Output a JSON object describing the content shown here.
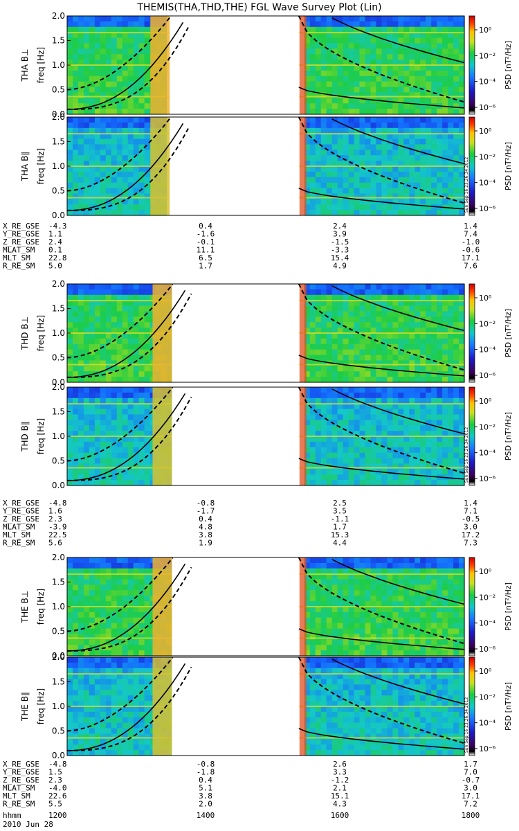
{
  "chart_data": {
    "type": "heatmap",
    "title": "THEMIS(THA,THD,THE) FGL Wave Survey Plot (Lin)",
    "freq_range_hz": [
      0,
      2.0
    ],
    "y_ticks": [
      "0.0",
      "0.5",
      "1.0",
      "1.5",
      "2.0"
    ],
    "colorbar": {
      "label": "PSD [nT²/Hz]",
      "ticks": [
        "10⁰",
        "10⁻²",
        "10⁻⁴",
        "10⁻⁶"
      ],
      "scale": "log"
    },
    "stamp": "Sun Sep 16 23:26:34 2012",
    "x_axis": {
      "label": "hhmm",
      "date": "2010 Jun 28",
      "ticks": [
        "1200",
        "1400",
        "1600",
        "1800"
      ],
      "range_hhmm": [
        "1200",
        "1800"
      ]
    },
    "panels": [
      {
        "probe": "THA",
        "label": "THA B⊥",
        "ylabel": "freq [Hz]"
      },
      {
        "probe": "THA",
        "label": "THA B∥",
        "ylabel": "freq [Hz]"
      },
      {
        "probe": "THD",
        "label": "THD B⊥",
        "ylabel": "freq [Hz]"
      },
      {
        "probe": "THD",
        "label": "THD B∥",
        "ylabel": "freq [Hz]"
      },
      {
        "probe": "THE",
        "label": "THE B⊥",
        "ylabel": "freq [Hz]"
      },
      {
        "probe": "THE",
        "label": "THE B∥",
        "ylabel": "freq [Hz]"
      }
    ],
    "data_gaps_hhmm": [
      {
        "probe": "THA",
        "from": "1333",
        "to": "1530"
      },
      {
        "probe": "THD",
        "from": "1335",
        "to": "1530"
      },
      {
        "probe": "THE",
        "from": "1335",
        "to": "1530"
      }
    ],
    "ephemeris": [
      {
        "probe": "THA",
        "rows": [
          {
            "name": "X_RE_GSE",
            "values": [
              "-4.3",
              "0.4",
              "2.4",
              "1.4"
            ]
          },
          {
            "name": "Y_RE_GSE",
            "values": [
              "1.1",
              "-1.6",
              "3.9",
              "7.4"
            ]
          },
          {
            "name": "Z_RE_GSE",
            "values": [
              "2.4",
              "-0.1",
              "-1.5",
              "-1.0"
            ]
          },
          {
            "name": "MLAT_SM",
            "values": [
              "0.1",
              "11.1",
              "-3.3",
              "-0.6"
            ]
          },
          {
            "name": "MLT_SM",
            "values": [
              "22.8",
              "6.5",
              "15.4",
              "17.1"
            ]
          },
          {
            "name": "R_RE_SM",
            "values": [
              "5.0",
              "1.7",
              "4.9",
              "7.6"
            ]
          }
        ]
      },
      {
        "probe": "THD",
        "rows": [
          {
            "name": "X_RE_GSE",
            "values": [
              "-4.8",
              "-0.8",
              "2.5",
              "1.4"
            ]
          },
          {
            "name": "Y_RE_GSE",
            "values": [
              "1.6",
              "-1.7",
              "3.5",
              "7.1"
            ]
          },
          {
            "name": "Z_RE_GSE",
            "values": [
              "2.3",
              "0.4",
              "-1.1",
              "-0.5"
            ]
          },
          {
            "name": "MLAT_SM",
            "values": [
              "-3.9",
              "4.8",
              "1.7",
              "3.0"
            ]
          },
          {
            "name": "MLT_SM",
            "values": [
              "22.5",
              "3.8",
              "15.3",
              "17.2"
            ]
          },
          {
            "name": "R_RE_SM",
            "values": [
              "5.6",
              "1.9",
              "4.4",
              "7.3"
            ]
          }
        ]
      },
      {
        "probe": "THE",
        "rows": [
          {
            "name": "X_RE_GSE",
            "values": [
              "-4.8",
              "-0.8",
              "2.6",
              "1.7"
            ]
          },
          {
            "name": "Y_RE_GSE",
            "values": [
              "1.5",
              "-1.8",
              "3.3",
              "7.0"
            ]
          },
          {
            "name": "Z_RE_GSE",
            "values": [
              "2.3",
              "0.4",
              "-1.2",
              "-0.7"
            ]
          },
          {
            "name": "MLAT_SM",
            "values": [
              "-4.0",
              "5.1",
              "2.1",
              "3.0"
            ]
          },
          {
            "name": "MLT_SM",
            "values": [
              "22.6",
              "3.8",
              "15.1",
              "17.1"
            ]
          },
          {
            "name": "R_RE_SM",
            "values": [
              "5.5",
              "2.0",
              "4.3",
              "7.2"
            ]
          }
        ]
      }
    ]
  }
}
